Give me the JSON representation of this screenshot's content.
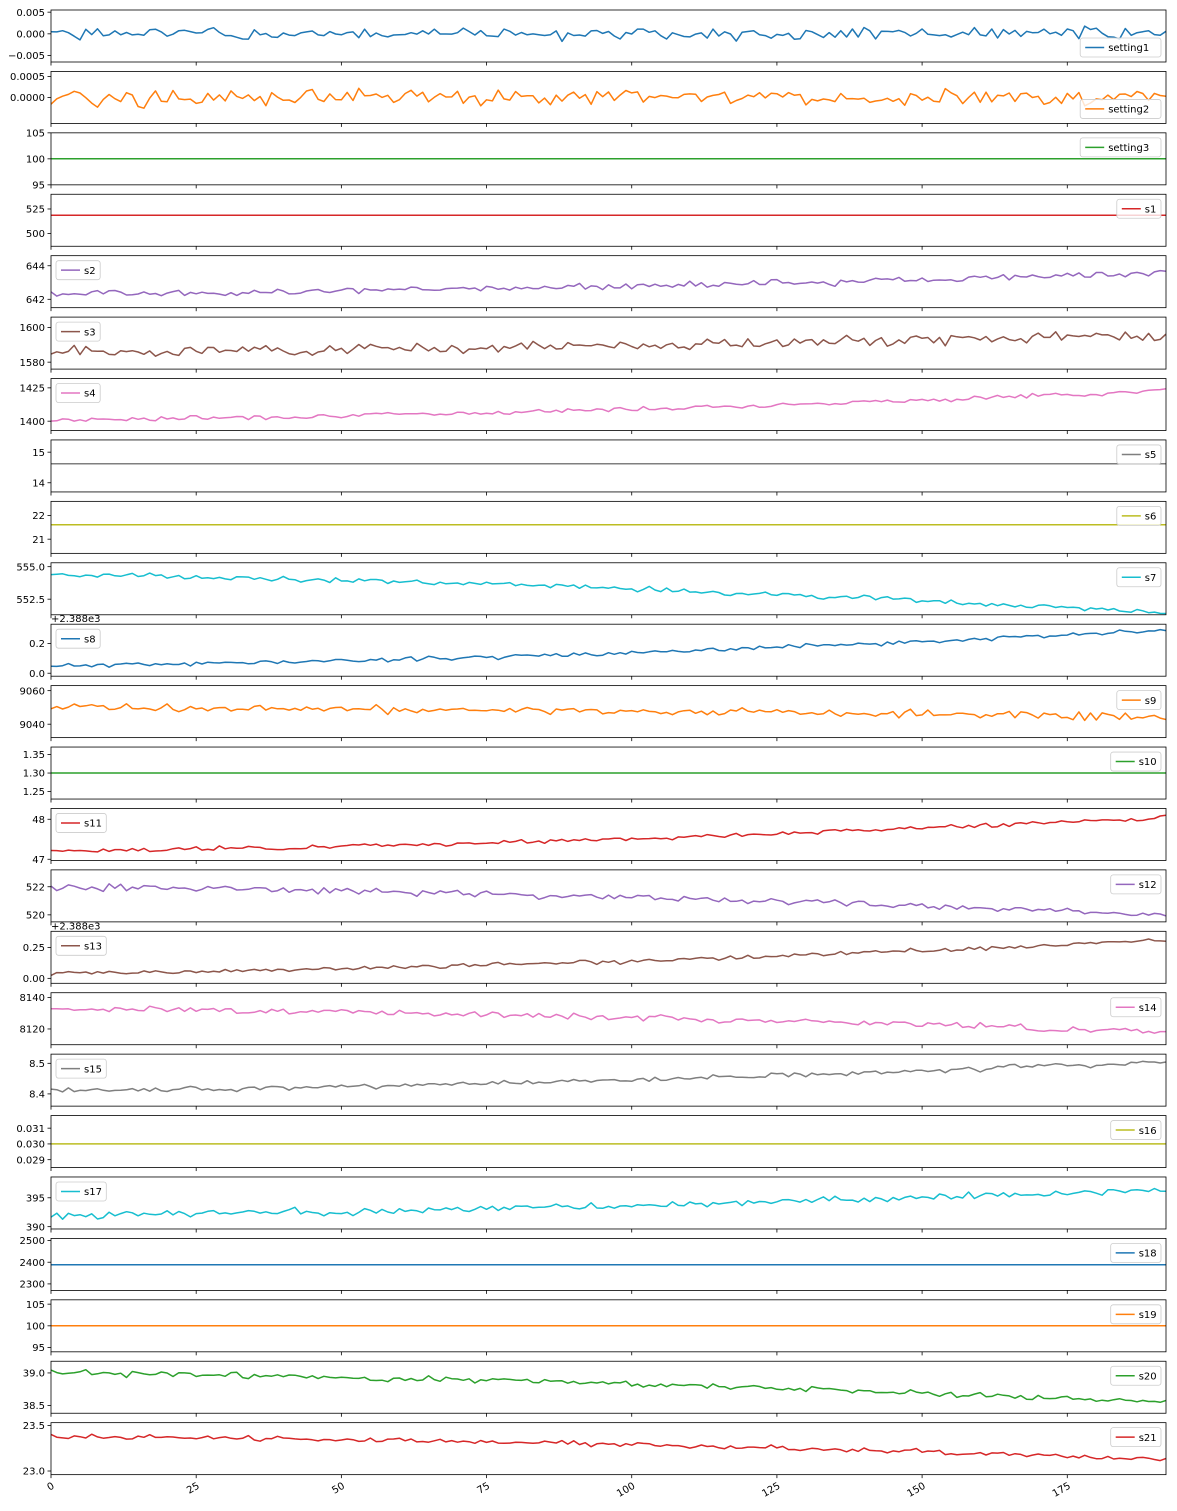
{
  "chart_data": {
    "type": "line",
    "x_ticks": [
      0,
      25,
      50,
      75,
      100,
      125,
      150,
      175
    ],
    "x_range": [
      0,
      192
    ],
    "grid": false,
    "panels": [
      {
        "series": "setting1",
        "color": "#1f77b4",
        "ylim": [
          -0.0065,
          0.0055
        ],
        "yticks": [
          -0.005,
          0.0,
          0.005
        ],
        "tick_labels": [
          "−0.005",
          "0.000",
          "0.005"
        ],
        "legend": "lower right",
        "level": 0.0,
        "amp": 0.0022,
        "trend": 0.0,
        "seed": 1
      },
      {
        "series": "setting2",
        "color": "#ff7f0e",
        "ylim": [
          -0.00062,
          0.00062
        ],
        "yticks": [
          0.0,
          0.0005
        ],
        "tick_labels": [
          "0.0000",
          "0.0005"
        ],
        "legend": "lower right",
        "level": 0.0,
        "amp": 0.0003,
        "trend": 0.0,
        "seed": 2
      },
      {
        "series": "setting3",
        "color": "#2ca02c",
        "ylim": [
          95,
          105
        ],
        "yticks": [
          95,
          100,
          105
        ],
        "tick_labels": [
          "95",
          "100",
          "105"
        ],
        "legend": "upper right",
        "level": 100,
        "amp": 0,
        "trend": 0,
        "seed": 3
      },
      {
        "series": "s1",
        "color": "#d62728",
        "ylim": [
          487,
          540
        ],
        "yticks": [
          500,
          525
        ],
        "tick_labels": [
          "500",
          "525"
        ],
        "legend": "upper right",
        "level": 518.67,
        "amp": 0,
        "trend": 0,
        "seed": 4
      },
      {
        "series": "s2",
        "color": "#9467bd",
        "ylim": [
          641.5,
          644.6
        ],
        "yticks": [
          642,
          644
        ],
        "tick_labels": [
          "642",
          "644"
        ],
        "legend": "upper left",
        "level": 642.3,
        "amp": 0.3,
        "trend": 1.3,
        "seed": 5
      },
      {
        "series": "s3",
        "color": "#8c564b",
        "ylim": [
          1576,
          1606
        ],
        "yticks": [
          1580,
          1600
        ],
        "tick_labels": [
          "1580",
          "1600"
        ],
        "legend": "upper left",
        "level": 1586,
        "amp": 4.5,
        "trend": 10,
        "seed": 6
      },
      {
        "series": "s4",
        "color": "#e377c2",
        "ylim": [
          1393,
          1432
        ],
        "yticks": [
          1400,
          1425
        ],
        "tick_labels": [
          "1400",
          "1425"
        ],
        "legend": "upper left",
        "level": 1401,
        "amp": 2.5,
        "trend": 22,
        "seed": 7
      },
      {
        "series": "s5",
        "color": "#7f7f7f",
        "ylim": [
          13.7,
          15.4
        ],
        "yticks": [
          14,
          15
        ],
        "tick_labels": [
          "14",
          "15"
        ],
        "legend": "upper right",
        "level": 14.62,
        "amp": 0,
        "trend": 0,
        "seed": 8
      },
      {
        "series": "s6",
        "color": "#bcbd22",
        "ylim": [
          20.4,
          22.6
        ],
        "yticks": [
          21,
          22
        ],
        "tick_labels": [
          "21",
          "22"
        ],
        "legend": "upper right",
        "level": 21.61,
        "amp": 0,
        "trend": 0,
        "seed": 9
      },
      {
        "series": "s7",
        "color": "#17becf",
        "ylim": [
          551.3,
          555.3
        ],
        "yticks": [
          552.5,
          555.0
        ],
        "tick_labels": [
          "552.5",
          "555.0"
        ],
        "legend": "upper right",
        "level": 554.4,
        "amp": 0.3,
        "trend": -3.0,
        "seed": 10
      },
      {
        "series": "s8",
        "color": "#1f77b4",
        "ylim": [
          -0.02,
          0.33
        ],
        "yticks": [
          0.0,
          0.2
        ],
        "tick_labels": [
          "0.0",
          "0.2"
        ],
        "legend": "upper left",
        "offset_label": "+2.388e3",
        "level": 0.05,
        "amp": 0.022,
        "trend": 0.24,
        "seed": 11
      },
      {
        "series": "s9",
        "color": "#ff7f0e",
        "ylim": [
          9032,
          9063
        ],
        "yticks": [
          9040,
          9060
        ],
        "tick_labels": [
          "9040",
          "9060"
        ],
        "legend": "upper right",
        "level": 9050,
        "amp": 3.5,
        "trend": -6,
        "seed": 12
      },
      {
        "series": "s10",
        "color": "#2ca02c",
        "ylim": [
          1.23,
          1.37
        ],
        "yticks": [
          1.25,
          1.3,
          1.35
        ],
        "tick_labels": [
          "1.25",
          "1.30",
          "1.35"
        ],
        "legend": "upper right",
        "level": 1.3,
        "amp": 0,
        "trend": 0,
        "seed": 13
      },
      {
        "series": "s11",
        "color": "#d62728",
        "ylim": [
          46.97,
          48.27
        ],
        "yticks": [
          47,
          48
        ],
        "tick_labels": [
          "47",
          "48"
        ],
        "legend": "upper left",
        "level": 47.2,
        "amp": 0.08,
        "trend": 0.85,
        "seed": 14
      },
      {
        "series": "s12",
        "color": "#9467bd",
        "ylim": [
          519.5,
          523.2
        ],
        "yticks": [
          520,
          522
        ],
        "tick_labels": [
          "520",
          "522"
        ],
        "legend": "upper right",
        "level": 522.0,
        "amp": 0.35,
        "trend": -2.0,
        "seed": 15
      },
      {
        "series": "s13",
        "color": "#8c564b",
        "ylim": [
          -0.04,
          0.38
        ],
        "yticks": [
          0.0,
          0.25
        ],
        "tick_labels": [
          "0.00",
          "0.25"
        ],
        "legend": "upper left",
        "offset_label": "+2.388e3",
        "level": 0.04,
        "amp": 0.025,
        "trend": 0.27,
        "seed": 16
      },
      {
        "series": "s14",
        "color": "#e377c2",
        "ylim": [
          8110,
          8143
        ],
        "yticks": [
          8120,
          8140
        ],
        "tick_labels": [
          "8120",
          "8140"
        ],
        "legend": "upper right",
        "level": 8133,
        "amp": 2.8,
        "trend": -15,
        "seed": 17
      },
      {
        "series": "s15",
        "color": "#7f7f7f",
        "ylim": [
          8.36,
          8.53
        ],
        "yticks": [
          8.4,
          8.5
        ],
        "tick_labels": [
          "8.4",
          "8.5"
        ],
        "legend": "upper left",
        "level": 8.41,
        "amp": 0.012,
        "trend": 0.095,
        "seed": 18
      },
      {
        "series": "s16",
        "color": "#bcbd22",
        "ylim": [
          0.0285,
          0.0318
        ],
        "yticks": [
          0.029,
          0.03,
          0.031
        ],
        "tick_labels": [
          "0.029",
          "0.030",
          "0.031"
        ],
        "legend": "upper right",
        "level": 0.03,
        "amp": 0,
        "trend": 0,
        "seed": 19
      },
      {
        "series": "s17",
        "color": "#17becf",
        "ylim": [
          389.6,
          398.6
        ],
        "yticks": [
          390,
          395
        ],
        "tick_labels": [
          "390",
          "395"
        ],
        "legend": "upper left",
        "level": 392,
        "amp": 0.9,
        "trend": 4.5,
        "seed": 20
      },
      {
        "series": "s18",
        "color": "#1f77b4",
        "ylim": [
          2270,
          2510
        ],
        "yticks": [
          2300,
          2400,
          2500
        ],
        "tick_labels": [
          "2300",
          "2400",
          "2500"
        ],
        "legend": "upper right",
        "level": 2388,
        "amp": 0,
        "trend": 0,
        "seed": 21
      },
      {
        "series": "s19",
        "color": "#ff7f0e",
        "ylim": [
          94,
          106
        ],
        "yticks": [
          95,
          100,
          105
        ],
        "tick_labels": [
          "95",
          "100",
          "105"
        ],
        "legend": "upper right",
        "level": 100,
        "amp": 0,
        "trend": 0,
        "seed": 22
      },
      {
        "series": "s20",
        "color": "#2ca02c",
        "ylim": [
          38.38,
          39.18
        ],
        "yticks": [
          38.5,
          39.0
        ],
        "tick_labels": [
          "38.5",
          "39.0"
        ],
        "legend": "upper right",
        "level": 39.0,
        "amp": 0.07,
        "trend": -0.45,
        "seed": 23
      },
      {
        "series": "s21",
        "color": "#d62728",
        "ylim": [
          22.96,
          23.53
        ],
        "yticks": [
          23.0,
          23.5
        ],
        "tick_labels": [
          "23.0",
          "23.5"
        ],
        "legend": "upper right",
        "level": 23.38,
        "amp": 0.04,
        "trend": -0.25,
        "seed": 24
      }
    ]
  }
}
